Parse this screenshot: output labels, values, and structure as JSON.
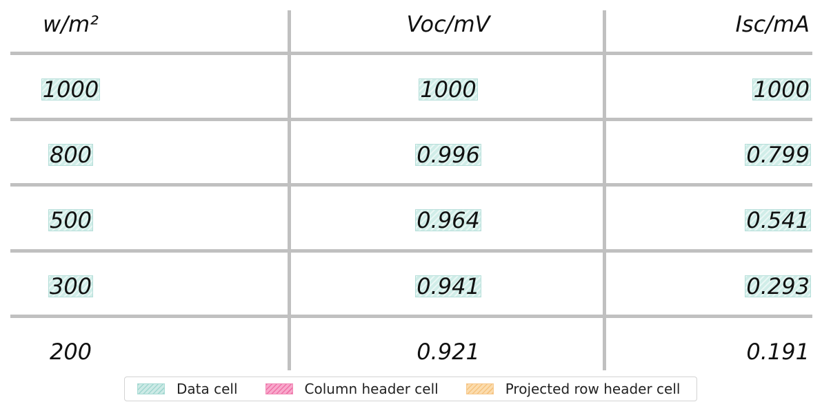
{
  "table": {
    "headers": [
      "w/m²",
      "Voc/mV",
      "Isc/mA"
    ],
    "rows": [
      [
        "1000",
        "1000",
        "1000"
      ],
      [
        "800",
        "0.996",
        "0.799"
      ],
      [
        "500",
        "0.964",
        "0.541"
      ],
      [
        "300",
        "0.941",
        "0.293"
      ],
      [
        "200",
        "0.921",
        "0.191"
      ]
    ],
    "highlighted_rows": [
      0,
      1,
      2,
      3
    ]
  },
  "legend": {
    "items": [
      {
        "label": "Data cell",
        "color": "#9fd6cf"
      },
      {
        "label": "Column header cell",
        "color": "#ef6fa6"
      },
      {
        "label": "Projected row header cell",
        "color": "#f6c27c"
      }
    ]
  },
  "colors": {
    "grid": "#c0c0c0",
    "data_cell": "#9fd6cf",
    "column_header_cell": "#ef6fa6",
    "projected_row_header_cell": "#f6c27c"
  }
}
